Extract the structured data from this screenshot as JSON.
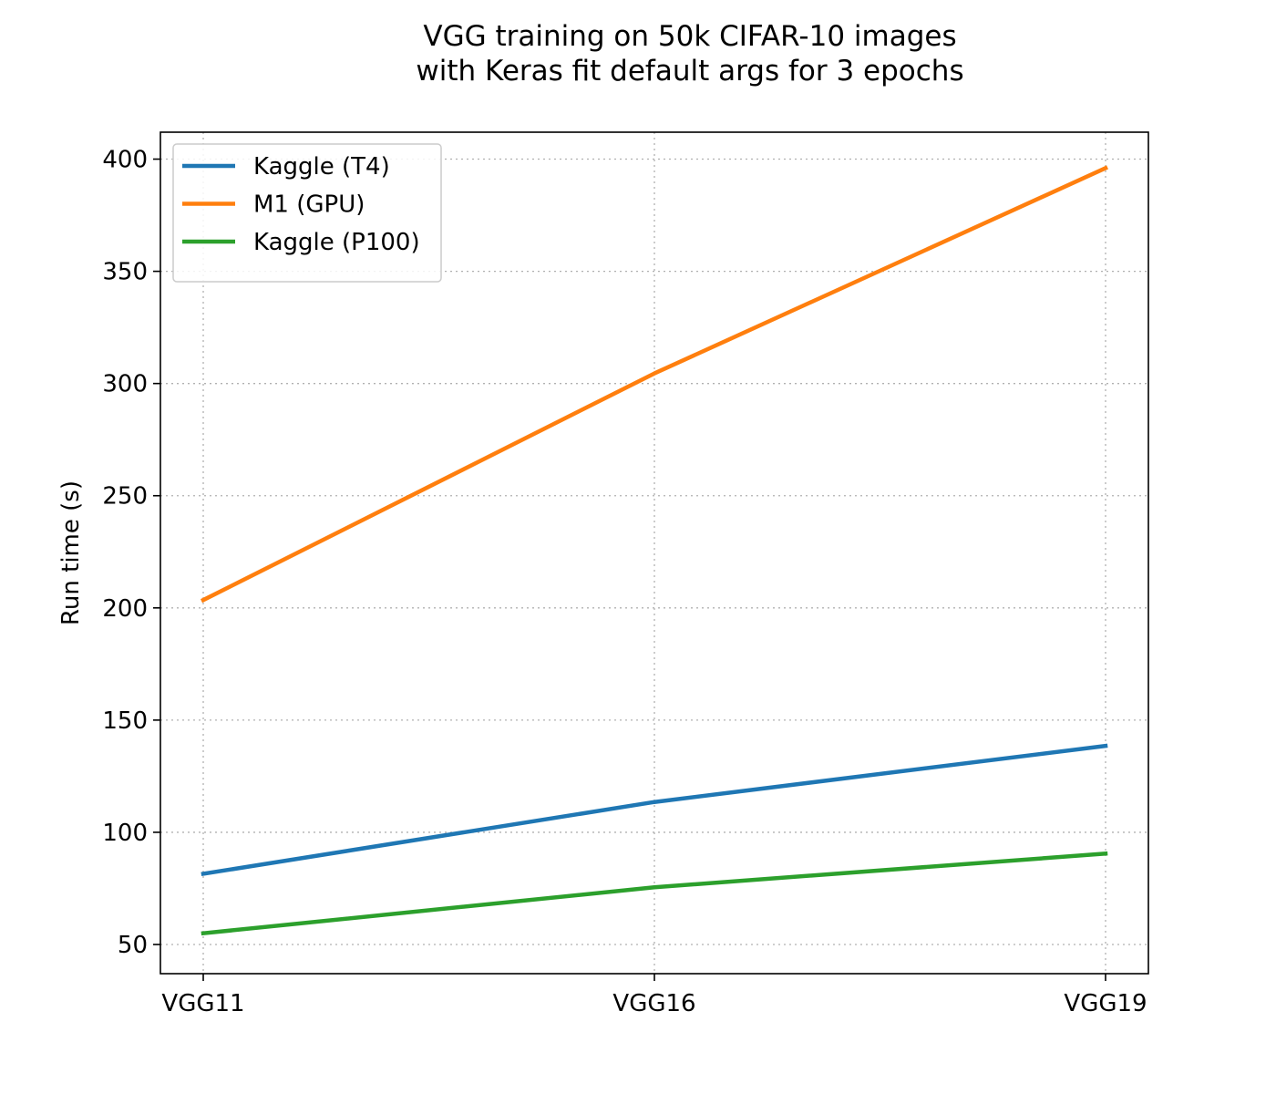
{
  "chart_data": {
    "type": "line",
    "title": [
      "VGG training on 50k CIFAR-10 images",
      "with Keras fit default args for 3 epochs"
    ],
    "xlabel": "",
    "ylabel": "Run time (s)",
    "categories": [
      "VGG11",
      "VGG16",
      "VGG19"
    ],
    "ylim": [
      37,
      412
    ],
    "yticks": [
      50,
      100,
      150,
      200,
      250,
      300,
      350,
      400
    ],
    "grid": true,
    "legend_position": "top-left",
    "series": [
      {
        "name": "Kaggle (T4)",
        "color": "#1f77b4",
        "values": [
          81.5,
          113.5,
          138.5
        ]
      },
      {
        "name": "M1 (GPU)",
        "color": "#ff7f0e",
        "values": [
          203.5,
          304.5,
          396
        ]
      },
      {
        "name": "Kaggle (P100)",
        "color": "#2ca02c",
        "values": [
          55,
          75.5,
          90.5
        ]
      }
    ]
  }
}
